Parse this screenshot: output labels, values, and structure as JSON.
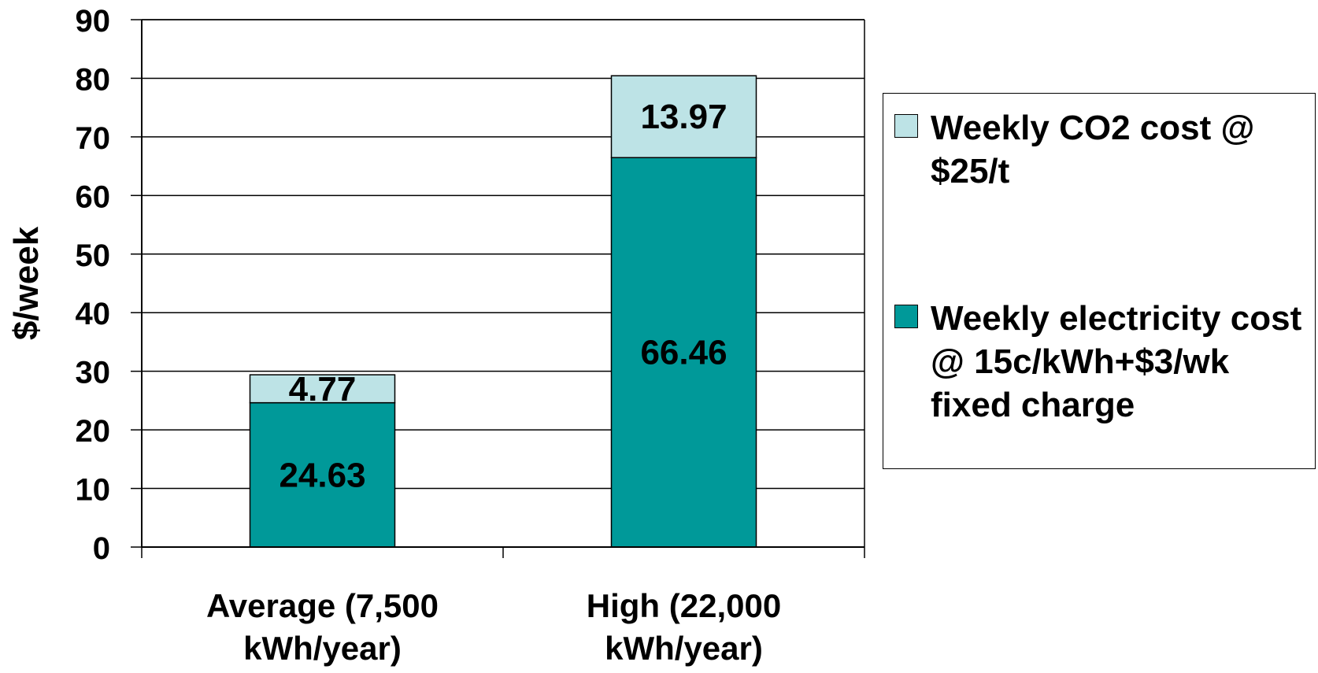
{
  "chart_data": {
    "type": "bar",
    "stacked": true,
    "categories": [
      "Average (7,500 kWh/year)",
      "High (22,000 kWh/year)"
    ],
    "category_lines": [
      [
        "Average (7,500",
        "kWh/year)"
      ],
      [
        "High (22,000",
        "kWh/year)"
      ]
    ],
    "series": [
      {
        "name": "Weekly electricity cost @ 15c/kWh+$3/wk fixed charge",
        "values": [
          24.63,
          66.46
        ],
        "color": "#009999",
        "labels": [
          "24.63",
          "66.46"
        ]
      },
      {
        "name": "Weekly CO2 cost @ $25/t",
        "values": [
          4.77,
          13.97
        ],
        "color": "#bde3e6",
        "labels": [
          "4.77",
          "13.97"
        ]
      }
    ],
    "ylabel": "$/week",
    "xlabel": "",
    "ylim": [
      0,
      90
    ],
    "yticks": [
      0,
      10,
      20,
      30,
      40,
      50,
      60,
      70,
      80,
      90
    ],
    "grid": true,
    "legend_position": "right"
  },
  "legend": {
    "items": [
      {
        "label": "Weekly CO2 cost @ $25/t",
        "color": "#bde3e6"
      },
      {
        "label": "Weekly electricity cost @ 15c/kWh+$3/wk fixed charge",
        "color": "#009999"
      }
    ]
  }
}
